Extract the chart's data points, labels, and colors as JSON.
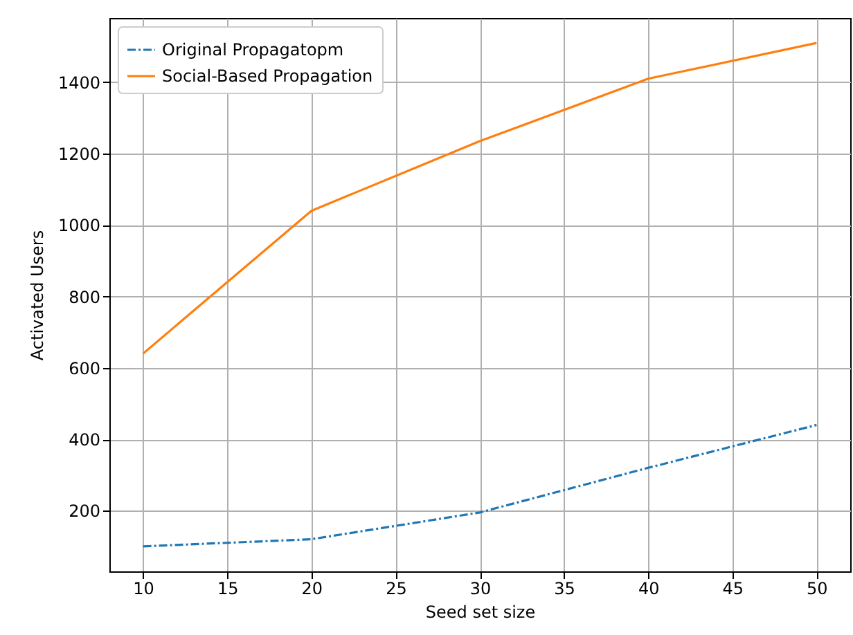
{
  "chart_data": {
    "type": "line",
    "xlabel": "Seed set size",
    "ylabel": "Activated Users",
    "x": [
      10,
      20,
      30,
      40,
      50
    ],
    "series": [
      {
        "name": "Original Propagatopm",
        "color": "#1f77b4",
        "line_style": "dashdot",
        "values": [
          100,
          120,
          195,
          320,
          440
        ]
      },
      {
        "name": "Social-Based Propagation",
        "color": "#ff7f0e",
        "line_style": "solid",
        "values": [
          640,
          1040,
          1235,
          1410,
          1510
        ]
      }
    ],
    "xlim": [
      8,
      52
    ],
    "xticks": [
      10,
      15,
      20,
      25,
      30,
      35,
      40,
      45,
      50
    ],
    "ylim": [
      30,
      1580
    ],
    "yticks": [
      200,
      400,
      600,
      800,
      1000,
      1200,
      1400
    ],
    "grid": true,
    "legend": "top left"
  }
}
